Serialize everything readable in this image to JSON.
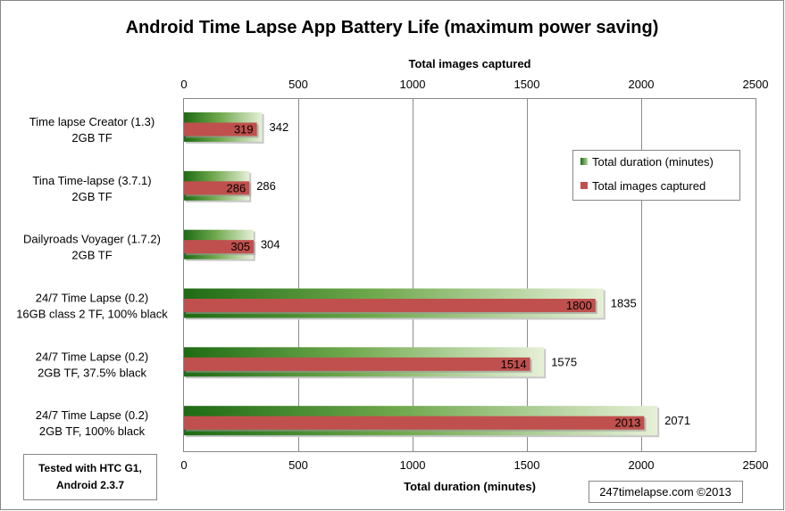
{
  "chart_data": {
    "type": "bar",
    "title": "Android Time Lapse App Battery Life (maximum power saving)",
    "categories": [
      [
        "Time lapse Creator (1.3)",
        "2GB TF"
      ],
      [
        "Tina Time-lapse (3.7.1)",
        "2GB TF"
      ],
      [
        "Dailyroads Voyager (1.7.2)",
        "2GB TF"
      ],
      [
        "24/7 Time Lapse (0.2)",
        "16GB class 2 TF, 100% black"
      ],
      [
        "24/7 Time Lapse (0.2)",
        "2GB TF, 37.5% black"
      ],
      [
        "24/7 Time Lapse (0.2)",
        "2GB TF, 100% black"
      ]
    ],
    "series": [
      {
        "name": "Total duration (minutes)",
        "axis": "bottom",
        "color": "#2e7d1f",
        "values": [
          342,
          286,
          304,
          1835,
          1575,
          2071
        ]
      },
      {
        "name": "Total images captured",
        "axis": "top",
        "color": "#c0504d",
        "values": [
          319,
          286,
          305,
          1800,
          1514,
          2013
        ]
      }
    ],
    "xlabel_bottom": "Total duration (minutes)",
    "xlabel_top": "Total images captured",
    "xlim": [
      0,
      2500
    ],
    "xticks": [
      0,
      500,
      1000,
      1500,
      2000,
      2500
    ],
    "grid": true,
    "legend": "right, inside plot"
  },
  "note_box": [
    "Tested with HTC G1,",
    "Android 2.3.7"
  ],
  "credit": "247timelapse.com ©2013"
}
